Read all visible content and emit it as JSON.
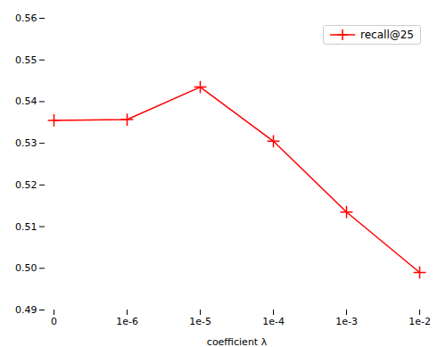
{
  "chart_data": {
    "type": "line",
    "xlabel": "coefficient λ",
    "categories": [
      "0",
      "1e-6",
      "1e-5",
      "1e-4",
      "1e-3",
      "1e-2"
    ],
    "series": [
      {
        "name": "recall@25",
        "color": "#ff0000",
        "marker": "+",
        "values": [
          0.5355,
          0.5357,
          0.5435,
          0.5305,
          0.5135,
          0.499
        ]
      }
    ],
    "ylim": [
      0.49,
      0.56
    ],
    "yticks": [
      0.49,
      {
        "value": 0.5,
        "label": "0.50"
      },
      0.51,
      0.52,
      0.53,
      0.54,
      0.55,
      0.56
    ],
    "grid": false,
    "legend": "upper right"
  }
}
